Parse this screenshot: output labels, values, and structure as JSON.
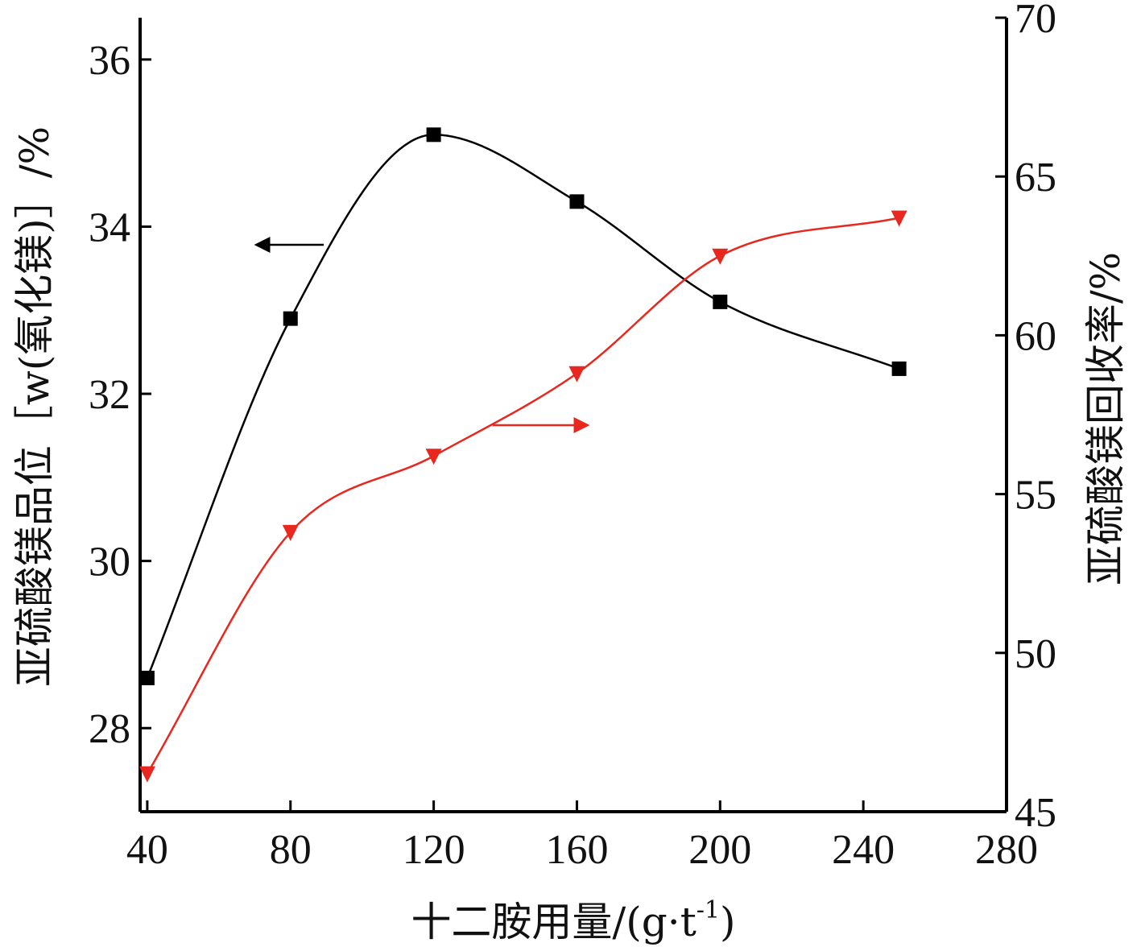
{
  "chart_data": {
    "type": "line",
    "xlabel": "十二胺用量/(g·t",
    "xlabel_sup": "-1",
    "xlabel_end": ")",
    "ylabel_left": "亚硫酸镁品位［w(氧化镁)］/%",
    "ylabel_right": "亚硫酸镁回收率/%",
    "xlim": [
      38,
      280
    ],
    "ylim_left": [
      27,
      36.5
    ],
    "ylim_right": [
      45,
      70
    ],
    "xticks": [
      40,
      80,
      120,
      160,
      200,
      240,
      280
    ],
    "yticks_left": [
      28,
      30,
      32,
      34,
      36
    ],
    "yticks_right": [
      45,
      50,
      55,
      60,
      65,
      70
    ],
    "grid": false,
    "legend": "none",
    "series": [
      {
        "axis": "left",
        "marker": "square",
        "color": "#000000",
        "x": [
          40,
          80,
          120,
          160,
          200,
          250
        ],
        "y": [
          28.6,
          32.9,
          35.1,
          34.3,
          33.1,
          32.3
        ]
      },
      {
        "axis": "right",
        "marker": "triangle-down",
        "color": "#e8281e",
        "x": [
          40,
          80,
          120,
          160,
          200,
          250
        ],
        "y": [
          46.2,
          53.8,
          56.2,
          58.8,
          62.5,
          63.7
        ]
      }
    ]
  }
}
